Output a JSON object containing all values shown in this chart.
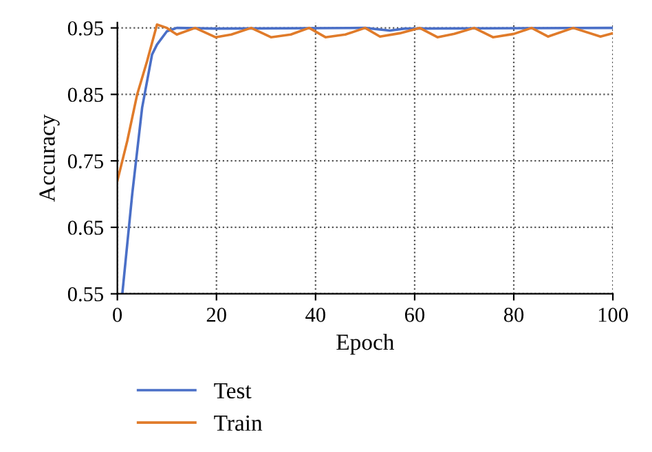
{
  "chart_data": {
    "type": "line",
    "xlabel": "Epoch",
    "ylabel": "Accuracy",
    "xlim": [
      0,
      100
    ],
    "xticks": [
      0,
      20,
      40,
      60,
      80,
      100
    ],
    "ylim": [
      0.55,
      0.958
    ],
    "yticks": [
      {
        "value": 0.55,
        "label": "0.55"
      },
      {
        "value": 0.65,
        "label": "0.65"
      },
      {
        "value": 0.75,
        "label": "0.75"
      },
      {
        "value": 0.85,
        "label": "0.85"
      },
      {
        "value": 0.95,
        "label": "0.95"
      }
    ],
    "grid": true,
    "legend": "bottom",
    "line_style": "solid",
    "marker": "none",
    "series": [
      {
        "name": "Test",
        "color": "#4a6fc7",
        "x": [
          1,
          3,
          5,
          7,
          8,
          10,
          12,
          20,
          50,
          55,
          58,
          100
        ],
        "values": [
          0.55,
          0.7,
          0.83,
          0.91,
          0.925,
          0.945,
          0.95,
          0.949,
          0.95,
          0.946,
          0.949,
          0.95
        ]
      },
      {
        "name": "Train",
        "color": "#e07b2a",
        "x": [
          0,
          2,
          4,
          6,
          8,
          10,
          12,
          15.7,
          19.8,
          23,
          27,
          31,
          35,
          38.7,
          42,
          46,
          50,
          53,
          57,
          61,
          64.6,
          68,
          72,
          75.8,
          80,
          83.6,
          86.9,
          92,
          97.5,
          100
        ],
        "values": [
          0.72,
          0.78,
          0.85,
          0.9,
          0.955,
          0.95,
          0.94,
          0.95,
          0.936,
          0.94,
          0.95,
          0.936,
          0.94,
          0.95,
          0.936,
          0.94,
          0.95,
          0.937,
          0.942,
          0.95,
          0.936,
          0.941,
          0.95,
          0.936,
          0.941,
          0.95,
          0.937,
          0.95,
          0.937,
          0.942
        ]
      }
    ]
  }
}
